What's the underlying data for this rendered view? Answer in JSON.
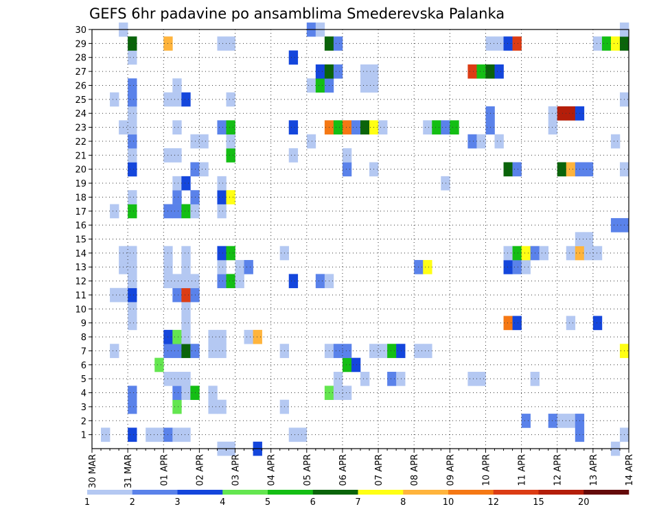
{
  "chart_data": {
    "type": "heatmap",
    "title": "GEFS 6hr padavine po ansamblima Smederevska Palanka",
    "x_tick_labels": [
      "30 MAR",
      "31 MAR",
      "01 APR",
      "02 APR",
      "03 APR",
      "04 APR",
      "05 APR",
      "06 APR",
      "07 APR",
      "08 APR",
      "09 APR",
      "10 APR",
      "11 APR",
      "12 APR",
      "13 APR",
      "14 APR"
    ],
    "x_unit": "6-hour step",
    "x_range": [
      0,
      60
    ],
    "y_tick_labels": [
      "1",
      "2",
      "3",
      "4",
      "5",
      "6",
      "7",
      "8",
      "9",
      "10",
      "11",
      "12",
      "13",
      "14",
      "15",
      "16",
      "17",
      "18",
      "19",
      "20",
      "21",
      "22",
      "23",
      "24",
      "25",
      "26",
      "27",
      "28",
      "29",
      "30"
    ],
    "y_range": [
      0,
      30
    ],
    "grid": true,
    "legend_levels": [
      "1",
      "2",
      "3",
      "4",
      "5",
      "6",
      "7",
      "8",
      "10",
      "12",
      "15",
      "20"
    ],
    "legend_colors": [
      "#b4c8f2",
      "#5a82ea",
      "#1446dc",
      "#64e650",
      "#14be14",
      "#0a640a",
      "#ffff14",
      "#ffb43c",
      "#f57814",
      "#dc3c14",
      "#b41e0a",
      "#640a0a"
    ],
    "cells": [
      [
        4,
        1,
        3
      ],
      [
        4,
        12,
        3
      ],
      [
        4,
        13,
        3
      ],
      [
        4,
        14,
        1
      ],
      [
        4,
        20,
        3
      ],
      [
        4,
        23,
        1
      ],
      [
        4,
        24,
        1
      ],
      [
        4,
        25,
        2
      ],
      [
        4,
        29,
        1
      ],
      [
        1,
        1,
        1
      ],
      [
        7,
        1,
        1
      ],
      [
        8,
        1,
        2
      ],
      [
        9,
        1,
        1
      ],
      [
        6,
        1,
        1
      ],
      [
        10,
        1,
        1
      ],
      [
        22,
        1,
        1
      ],
      [
        23,
        1,
        1
      ],
      [
        54,
        1,
        2
      ],
      [
        59,
        1,
        1
      ],
      [
        48,
        2,
        2
      ],
      [
        51,
        2,
        2
      ],
      [
        52,
        2,
        1
      ],
      [
        53,
        2,
        1
      ],
      [
        54,
        2,
        2
      ],
      [
        4,
        3,
        2
      ],
      [
        9,
        3,
        4
      ],
      [
        13,
        3,
        1
      ],
      [
        14,
        3,
        1
      ],
      [
        21,
        3,
        1
      ],
      [
        4,
        4,
        2
      ],
      [
        9,
        4,
        2
      ],
      [
        10,
        4,
        1
      ],
      [
        11,
        4,
        5
      ],
      [
        13,
        4,
        1
      ],
      [
        26,
        4,
        4
      ],
      [
        27,
        4,
        1
      ],
      [
        28,
        4,
        1
      ],
      [
        8,
        5,
        1
      ],
      [
        9,
        5,
        1
      ],
      [
        10,
        5,
        1
      ],
      [
        27,
        5,
        1
      ],
      [
        30,
        5,
        1
      ],
      [
        33,
        5,
        2
      ],
      [
        34,
        5,
        1
      ],
      [
        42,
        5,
        1
      ],
      [
        43,
        5,
        1
      ],
      [
        49,
        5,
        1
      ],
      [
        7,
        6,
        4
      ],
      [
        28,
        6,
        5
      ],
      [
        29,
        6,
        3
      ],
      [
        2,
        7,
        1
      ],
      [
        8,
        7,
        2
      ],
      [
        9,
        7,
        2
      ],
      [
        10,
        7,
        6
      ],
      [
        11,
        7,
        2
      ],
      [
        13,
        7,
        1
      ],
      [
        14,
        7,
        1
      ],
      [
        21,
        7,
        1
      ],
      [
        26,
        7,
        1
      ],
      [
        27,
        7,
        2
      ],
      [
        28,
        7,
        2
      ],
      [
        31,
        7,
        1
      ],
      [
        32,
        7,
        1
      ],
      [
        33,
        7,
        5
      ],
      [
        34,
        7,
        3
      ],
      [
        36,
        7,
        1
      ],
      [
        37,
        7,
        1
      ],
      [
        59,
        7,
        7
      ],
      [
        8,
        8,
        3
      ],
      [
        9,
        8,
        4
      ],
      [
        10,
        8,
        1
      ],
      [
        13,
        8,
        1
      ],
      [
        14,
        8,
        1
      ],
      [
        17,
        8,
        1
      ],
      [
        18,
        8,
        8
      ],
      [
        4,
        9,
        1
      ],
      [
        10,
        9,
        1
      ],
      [
        46,
        9,
        9
      ],
      [
        47,
        9,
        3
      ],
      [
        53,
        9,
        1
      ],
      [
        56,
        9,
        3
      ],
      [
        4,
        10,
        1
      ],
      [
        10,
        10,
        1
      ],
      [
        2,
        11,
        1
      ],
      [
        3,
        11,
        1
      ],
      [
        4,
        11,
        3
      ],
      [
        9,
        11,
        2
      ],
      [
        10,
        11,
        10
      ],
      [
        11,
        11,
        2
      ],
      [
        4,
        12,
        1
      ],
      [
        8,
        12,
        1
      ],
      [
        9,
        12,
        1
      ],
      [
        10,
        12,
        1
      ],
      [
        11,
        12,
        1
      ],
      [
        14,
        12,
        2
      ],
      [
        15,
        12,
        5
      ],
      [
        16,
        12,
        1
      ],
      [
        22,
        12,
        3
      ],
      [
        25,
        12,
        2
      ],
      [
        26,
        12,
        1
      ],
      [
        3,
        13,
        1
      ],
      [
        4,
        13,
        1
      ],
      [
        8,
        13,
        1
      ],
      [
        10,
        13,
        1
      ],
      [
        14,
        13,
        1
      ],
      [
        16,
        13,
        1
      ],
      [
        17,
        13,
        2
      ],
      [
        36,
        13,
        2
      ],
      [
        37,
        13,
        7
      ],
      [
        46,
        13,
        3
      ],
      [
        47,
        13,
        2
      ],
      [
        48,
        13,
        1
      ],
      [
        3,
        14,
        1
      ],
      [
        4,
        14,
        1
      ],
      [
        8,
        14,
        1
      ],
      [
        10,
        14,
        1
      ],
      [
        14,
        14,
        3
      ],
      [
        15,
        14,
        5
      ],
      [
        21,
        14,
        1
      ],
      [
        46,
        14,
        1
      ],
      [
        47,
        14,
        5
      ],
      [
        48,
        14,
        7
      ],
      [
        49,
        14,
        2
      ],
      [
        50,
        14,
        1
      ],
      [
        53,
        14,
        1
      ],
      [
        54,
        14,
        8
      ],
      [
        55,
        14,
        1
      ],
      [
        56,
        14,
        1
      ],
      [
        54,
        15,
        1
      ],
      [
        55,
        15,
        1
      ],
      [
        59,
        16,
        2
      ],
      [
        58,
        16,
        2
      ],
      [
        2,
        17,
        1
      ],
      [
        4,
        17,
        5
      ],
      [
        8,
        17,
        2
      ],
      [
        9,
        17,
        2
      ],
      [
        10,
        17,
        5
      ],
      [
        11,
        17,
        1
      ],
      [
        14,
        17,
        1
      ],
      [
        4,
        18,
        1
      ],
      [
        9,
        18,
        2
      ],
      [
        11,
        18,
        2
      ],
      [
        14,
        18,
        3
      ],
      [
        15,
        18,
        7
      ],
      [
        9,
        19,
        1
      ],
      [
        10,
        19,
        3
      ],
      [
        14,
        19,
        1
      ],
      [
        39,
        19,
        1
      ],
      [
        4,
        20,
        3
      ],
      [
        11,
        20,
        2
      ],
      [
        12,
        20,
        1
      ],
      [
        28,
        20,
        2
      ],
      [
        31,
        20,
        1
      ],
      [
        46,
        20,
        6
      ],
      [
        47,
        20,
        2
      ],
      [
        52,
        20,
        6
      ],
      [
        53,
        20,
        8
      ],
      [
        54,
        20,
        2
      ],
      [
        55,
        20,
        2
      ],
      [
        59,
        20,
        1
      ],
      [
        4,
        21,
        1
      ],
      [
        8,
        21,
        1
      ],
      [
        9,
        21,
        1
      ],
      [
        15,
        21,
        5
      ],
      [
        22,
        21,
        1
      ],
      [
        28,
        21,
        1
      ],
      [
        4,
        22,
        2
      ],
      [
        11,
        22,
        1
      ],
      [
        12,
        22,
        1
      ],
      [
        15,
        22,
        1
      ],
      [
        24,
        22,
        1
      ],
      [
        42,
        22,
        2
      ],
      [
        43,
        22,
        1
      ],
      [
        45,
        22,
        1
      ],
      [
        58,
        22,
        1
      ],
      [
        3,
        23,
        1
      ],
      [
        4,
        23,
        1
      ],
      [
        9,
        23,
        1
      ],
      [
        14,
        23,
        2
      ],
      [
        15,
        23,
        5
      ],
      [
        22,
        23,
        3
      ],
      [
        26,
        23,
        9
      ],
      [
        27,
        23,
        5
      ],
      [
        28,
        23,
        9
      ],
      [
        29,
        23,
        2
      ],
      [
        30,
        23,
        6
      ],
      [
        31,
        23,
        7
      ],
      [
        32,
        23,
        1
      ],
      [
        37,
        23,
        1
      ],
      [
        38,
        23,
        5
      ],
      [
        39,
        23,
        2
      ],
      [
        40,
        23,
        5
      ],
      [
        44,
        23,
        2
      ],
      [
        51,
        23,
        1
      ],
      [
        4,
        24,
        1
      ],
      [
        44,
        24,
        2
      ],
      [
        51,
        24,
        1
      ],
      [
        52,
        24,
        11
      ],
      [
        53,
        24,
        11
      ],
      [
        54,
        24,
        3
      ],
      [
        2,
        25,
        1
      ],
      [
        4,
        25,
        2
      ],
      [
        8,
        25,
        1
      ],
      [
        9,
        25,
        1
      ],
      [
        10,
        25,
        3
      ],
      [
        15,
        25,
        1
      ],
      [
        59,
        25,
        1
      ],
      [
        4,
        26,
        2
      ],
      [
        9,
        26,
        1
      ],
      [
        24,
        26,
        1
      ],
      [
        25,
        26,
        5
      ],
      [
        26,
        26,
        2
      ],
      [
        30,
        26,
        1
      ],
      [
        31,
        26,
        1
      ],
      [
        25,
        27,
        3
      ],
      [
        26,
        27,
        6
      ],
      [
        27,
        27,
        2
      ],
      [
        30,
        27,
        1
      ],
      [
        31,
        27,
        1
      ],
      [
        42,
        27,
        10
      ],
      [
        43,
        27,
        5
      ],
      [
        44,
        27,
        6
      ],
      [
        45,
        27,
        3
      ],
      [
        4,
        28,
        1
      ],
      [
        22,
        28,
        3
      ],
      [
        4,
        29,
        6
      ],
      [
        8,
        29,
        8
      ],
      [
        14,
        29,
        1
      ],
      [
        15,
        29,
        1
      ],
      [
        26,
        29,
        6
      ],
      [
        27,
        29,
        2
      ],
      [
        44,
        29,
        1
      ],
      [
        45,
        29,
        1
      ],
      [
        46,
        29,
        3
      ],
      [
        47,
        29,
        10
      ],
      [
        56,
        29,
        1
      ],
      [
        57,
        29,
        5
      ],
      [
        58,
        29,
        7
      ],
      [
        59,
        29,
        6
      ],
      [
        3,
        30,
        1
      ],
      [
        24,
        30,
        2
      ],
      [
        25,
        30,
        1
      ],
      [
        59,
        30,
        1
      ],
      [
        14,
        0,
        1
      ],
      [
        15,
        0,
        1
      ],
      [
        18,
        0,
        3
      ],
      [
        58,
        0,
        1
      ]
    ]
  }
}
